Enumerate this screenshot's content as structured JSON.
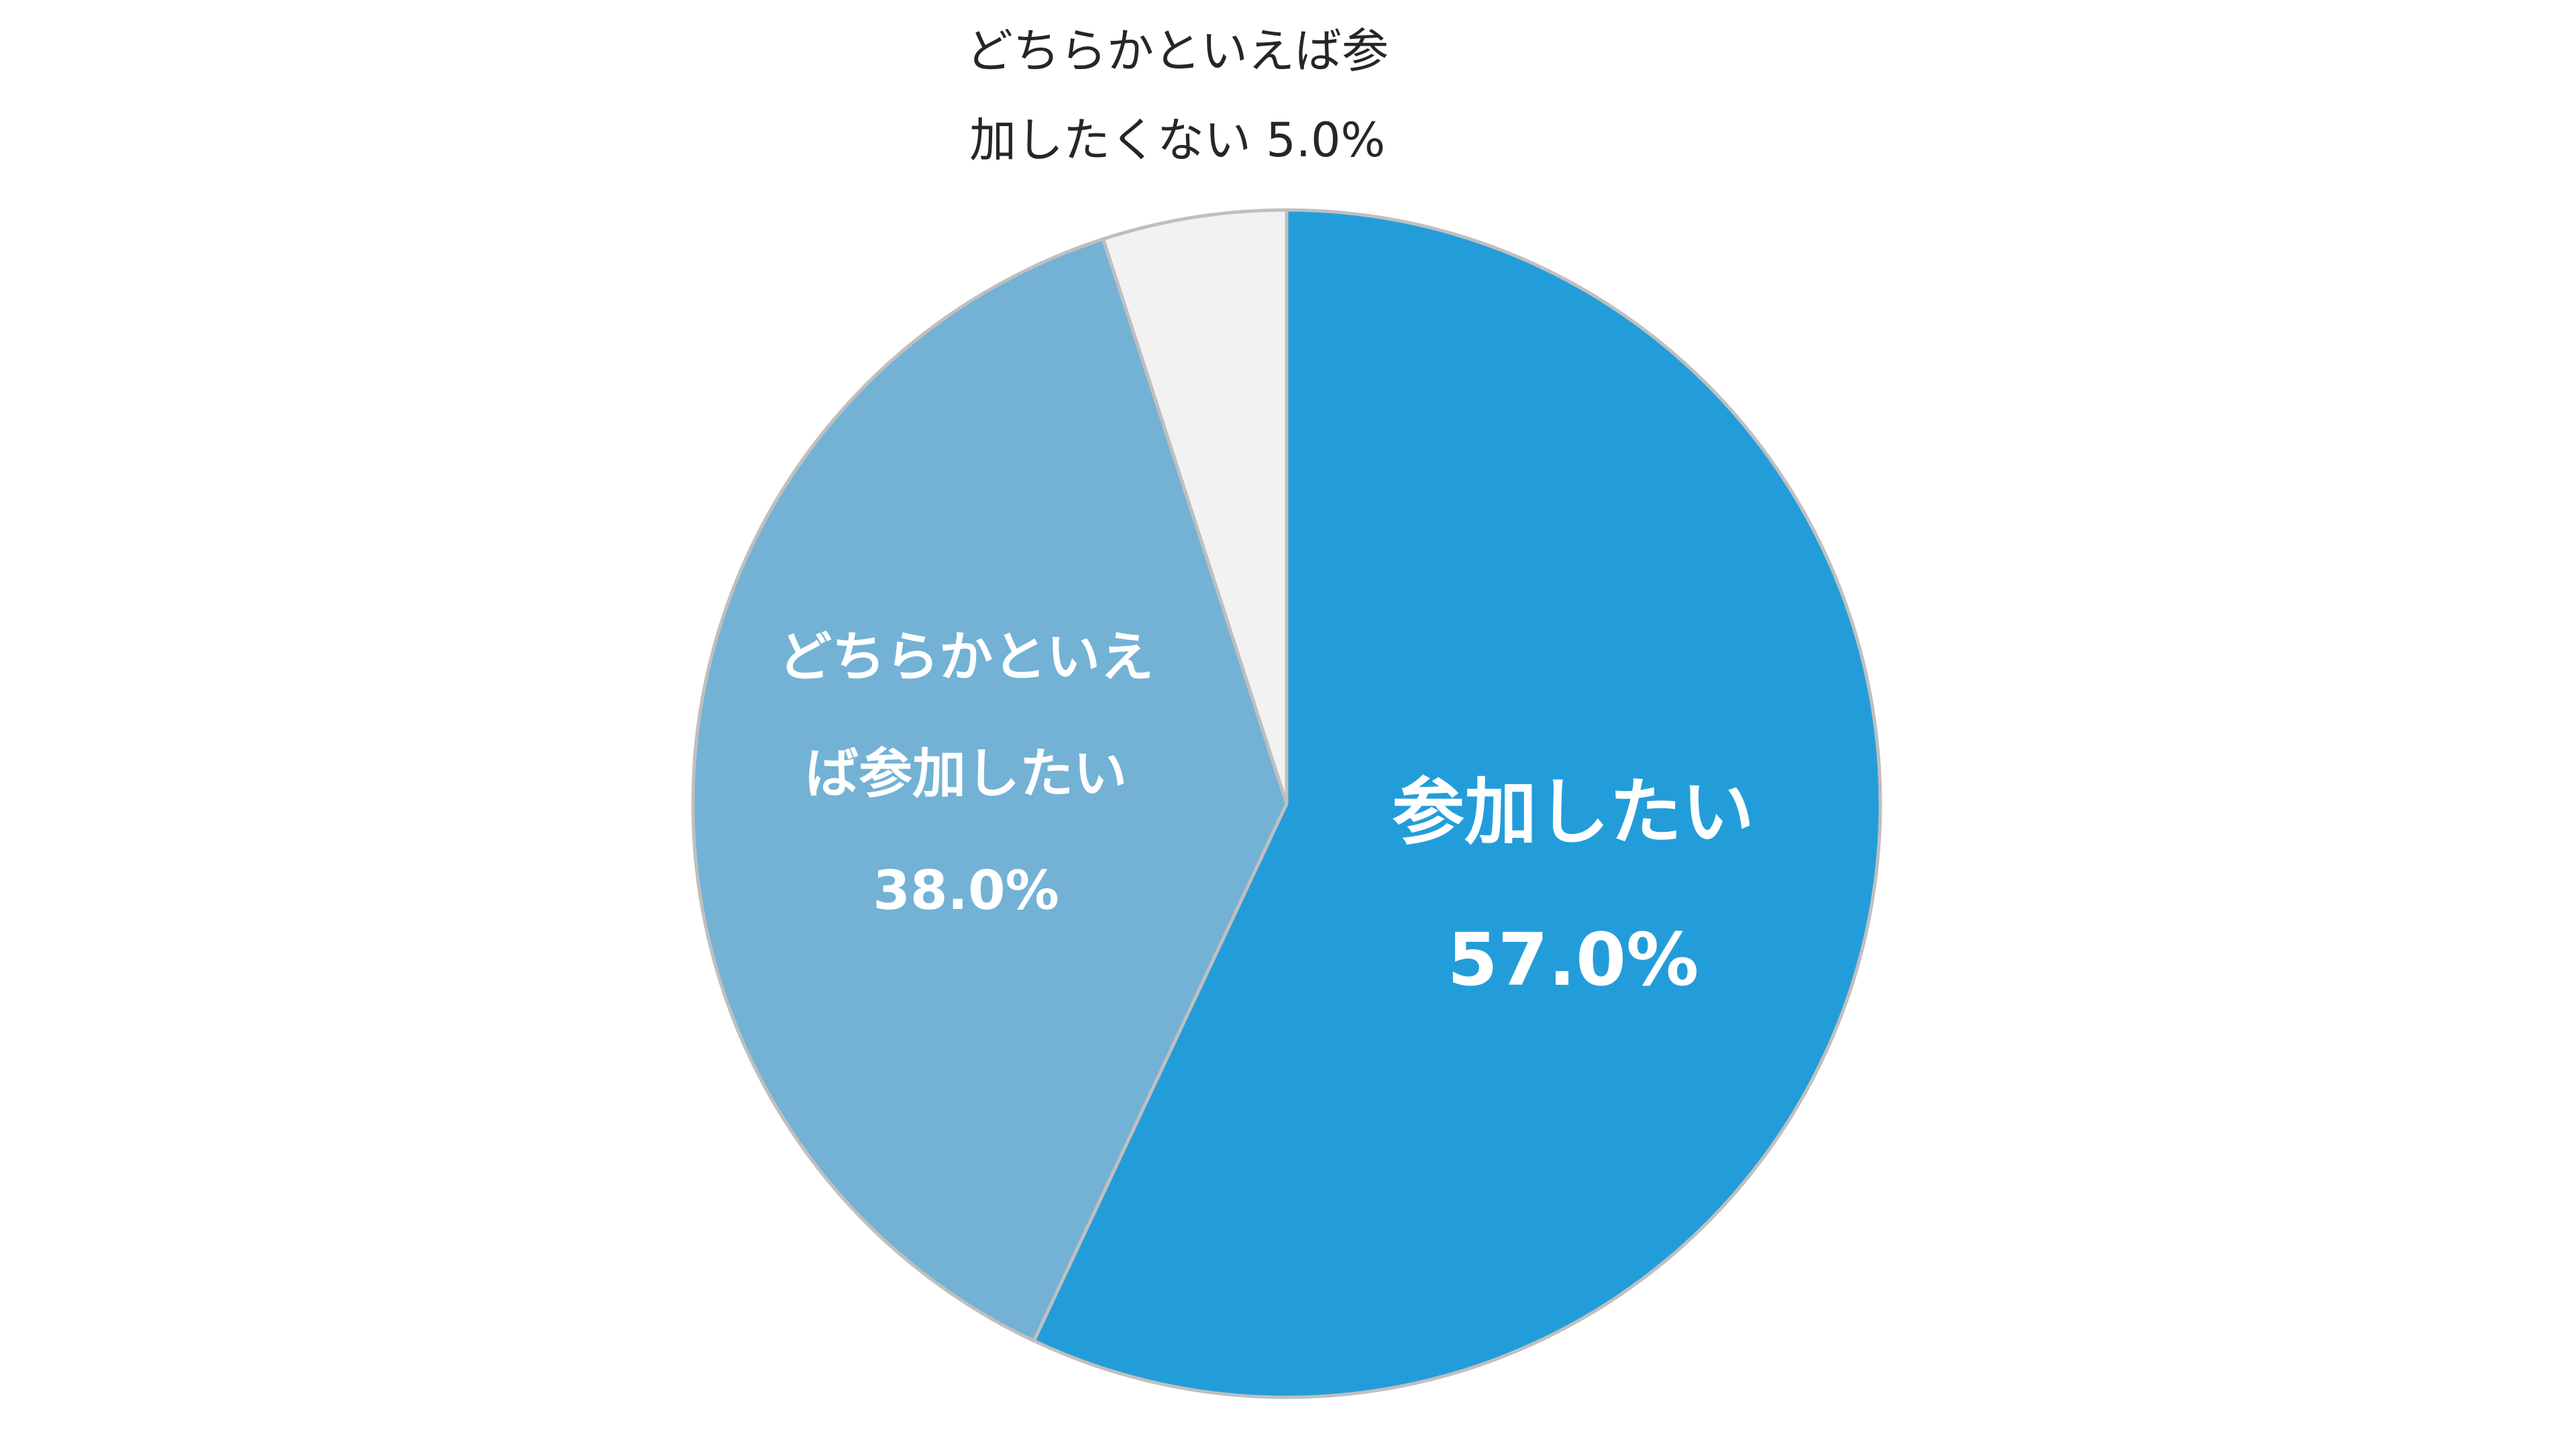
{
  "chart_data": {
    "type": "pie",
    "start_angle_deg": 0,
    "direction": "clockwise",
    "slices": [
      {
        "name": "参加したい",
        "value": 57.0,
        "value_label": "57.0%",
        "label_lines": [
          "参加したい",
          "57.0%"
        ],
        "color": "#239DDA",
        "label_position": "inside"
      },
      {
        "name": "どちらかといえば参加したい",
        "value": 38.0,
        "value_label": "38.0%",
        "label_lines": [
          "どちらかといえ",
          "ば参加したい",
          "38.0%"
        ],
        "color": "#73B2D5",
        "label_position": "inside"
      },
      {
        "name": "どちらかといえば参加したくない",
        "value": 5.0,
        "value_label": "5.0%",
        "label_lines": [
          "どちらかといえば参",
          "加したくない 5.0%"
        ],
        "color": "#F2F2F2",
        "label_position": "outside"
      }
    ],
    "slice_border_color": "#BFBFBF",
    "label_color_inside": "#FFFFFF",
    "label_color_outside": "#262626",
    "legend": "none"
  }
}
